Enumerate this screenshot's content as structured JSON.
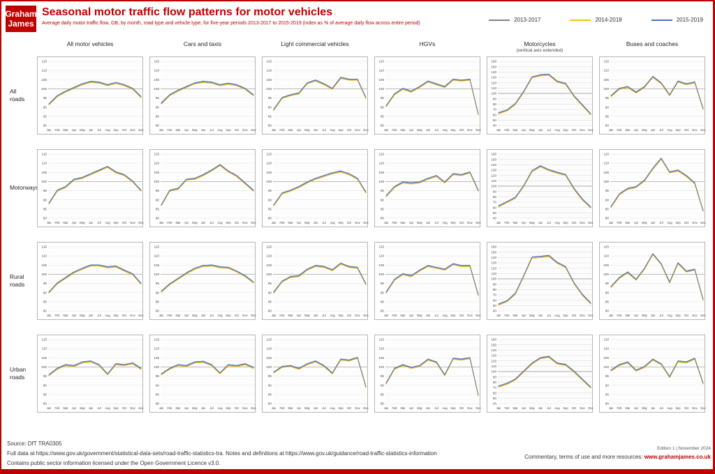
{
  "brand": {
    "logo_line1": "Graham",
    "logo_line2": "James",
    "accent_color": "#c00000"
  },
  "header": {
    "title": "Seasonal motor traffic flow patterns for motor vehicles",
    "subtitle": "Average daily motor traffic flow, GB, by month, road type and vehicle type, for five-year periods 2013-2017 to 2015-2019 (index as % of average daily flow across entire period)"
  },
  "legend": [
    {
      "label": "2013-2017",
      "color": "#808080"
    },
    {
      "label": "2014-2018",
      "color": "#ffc000"
    },
    {
      "label": "2015-2019",
      "color": "#4472c4"
    }
  ],
  "chart_data": {
    "type": "line",
    "note": "Small-multiple grid; the three five-year-period series are nearly identical in every panel, so one consensus set of monthly values is given per panel.",
    "months": [
      "Jan",
      "Feb",
      "Mar",
      "Apr",
      "May",
      "Jun",
      "Jul",
      "Aug",
      "Sep",
      "Oct",
      "Nov",
      "Dec"
    ],
    "series": [
      {
        "name": "2013-2017",
        "color": "#808080",
        "offset": 0
      },
      {
        "name": "2014-2018",
        "color": "#ffc000",
        "offset": -0.35
      },
      {
        "name": "2015-2019",
        "color": "#4472c4",
        "offset": 0.35
      }
    ],
    "columns": [
      {
        "label": "All motor vehicles",
        "sublabel": ""
      },
      {
        "label": "Cars and taxis",
        "sublabel": ""
      },
      {
        "label": "Light commercial vehicles",
        "sublabel": ""
      },
      {
        "label": "HGVs",
        "sublabel": ""
      },
      {
        "label": "Motorcycles",
        "sublabel": "(vertical axis extended)"
      },
      {
        "label": "Buses and coaches",
        "sublabel": ""
      }
    ],
    "axes": {
      "default": {
        "min": 80,
        "max": 115,
        "step": 5,
        "reference": 100
      },
      "extended": {
        "min": 40,
        "max": 160,
        "step": 10,
        "reference": 100
      }
    },
    "rows": [
      {
        "label": "All roads",
        "panels": [
          {
            "axis": "default",
            "values": [
              91.5,
              96,
              98.5,
              100.5,
              102.5,
              103.8,
              103.4,
              102,
              103.2,
              102,
              100,
              95.5
            ]
          },
          {
            "axis": "default",
            "values": [
              92,
              96.5,
              99,
              101,
              103,
              103.8,
              103.4,
              102,
              102.8,
              102,
              100,
              96.5
            ]
          },
          {
            "axis": "default",
            "values": [
              88.5,
              95,
              96.5,
              97.5,
              103,
              104.5,
              102.5,
              100,
              106,
              105,
              105,
              95
            ]
          },
          {
            "axis": "default",
            "values": [
              90.5,
              97,
              100,
              98.5,
              101,
              104,
              102.5,
              101,
              105,
              104.5,
              105,
              86
            ]
          },
          {
            "axis": "extended",
            "values": [
              63,
              68,
              80,
              103,
              130,
              134,
              135,
              122,
              118,
              95,
              78,
              61
            ]
          },
          {
            "axis": "default",
            "values": [
              96,
              100,
              101,
              98,
              101,
              106.5,
              103,
              96.5,
              104,
              102.5,
              103.5,
              89
            ]
          }
        ]
      },
      {
        "label": "Motorways",
        "panels": [
          {
            "axis": "default",
            "values": [
              88,
              95,
              97,
              101,
              102,
              104,
              106,
              108,
              105,
              103.5,
              100,
              95
            ]
          },
          {
            "axis": "default",
            "values": [
              87,
              95,
              96,
              101,
              101.5,
              103.5,
              106,
              109,
              105.5,
              103,
              99,
              95
            ]
          },
          {
            "axis": "default",
            "values": [
              87,
              93.5,
              95,
              97,
              99.5,
              101.5,
              103,
              104.5,
              105.5,
              104,
              101.5,
              94
            ]
          },
          {
            "axis": "default",
            "values": [
              92,
              97,
              99.5,
              99,
              99.5,
              101.5,
              103,
              99.5,
              104,
              103.5,
              105,
              95
            ]
          },
          {
            "axis": "extended",
            "values": [
              62,
              70,
              78,
              100,
              128,
              137,
              130,
              125,
              121,
              95,
              75,
              60
            ]
          },
          {
            "axis": "default",
            "values": [
              86,
              93,
              96,
              97,
              100.5,
              107,
              112.5,
              105,
              106,
              103,
              99,
              84
            ]
          }
        ]
      },
      {
        "label": "Rural roads",
        "panels": [
          {
            "axis": "default",
            "values": [
              90,
              95,
              98,
              101,
              103,
              104.8,
              104.8,
              103.8,
              104.2,
              102,
              100,
              94.8
            ]
          },
          {
            "axis": "default",
            "values": [
              90.5,
              94.5,
              97.5,
              100.5,
              103,
              104.5,
              104.8,
              103.8,
              103.5,
              101.5,
              99,
              95.5
            ]
          },
          {
            "axis": "default",
            "values": [
              90,
              96,
              98.5,
              99,
              102.5,
              104.5,
              104,
              102.2,
              105.8,
              104,
              103.5,
              94.5
            ]
          },
          {
            "axis": "default",
            "values": [
              90,
              97,
              100,
              99,
              102,
              104.5,
              103.5,
              102.5,
              105.5,
              104.5,
              104.5,
              88.5
            ]
          },
          {
            "axis": "extended",
            "values": [
              52,
              58,
              72,
              105,
              140,
              141,
              143,
              130,
              122,
              92,
              70,
              54
            ]
          },
          {
            "axis": "default",
            "values": [
              93,
              98,
              101,
              97,
              103,
              111,
              105.5,
              95.5,
              106,
              101.5,
              102.5,
              86
            ]
          }
        ]
      },
      {
        "label": "Urban roads",
        "panels": [
          {
            "axis": "default",
            "values": [
              95.5,
              99,
              101,
              100.5,
              102.5,
              103,
              101,
              96,
              101.5,
              101,
              102,
              99
            ]
          },
          {
            "axis": "default",
            "values": [
              96,
              99,
              101,
              100.5,
              102.5,
              102.8,
              101,
              96.5,
              101,
              100.5,
              101.5,
              99.5
            ]
          },
          {
            "axis": "default",
            "values": [
              97,
              100,
              100.5,
              99,
              101.5,
              103,
              100.5,
              96.5,
              104,
              103.5,
              105,
              89
            ]
          },
          {
            "axis": "default",
            "values": [
              91,
              99,
              101,
              99.5,
              100.5,
              104,
              102.5,
              95.5,
              104.5,
              104,
              104.8,
              84.5
            ]
          },
          {
            "axis": "extended",
            "values": [
              72,
              77,
              85,
              100,
              115,
              125,
              127.5,
              115,
              112.5,
              100,
              85,
              70
            ]
          },
          {
            "axis": "default",
            "values": [
              98,
              101,
              102.5,
              98,
              100,
              104,
              101.5,
              94.5,
              103,
              102.5,
              104.5,
              91
            ]
          }
        ]
      }
    ]
  },
  "footer": {
    "source": "Source: DfT TRA0305",
    "full_data": "Full data at https://www.gov.uk/government/statistical-data-sets/road-traffic-statistics-tra. Notes and definitions at https://www.gov.uk/guidance/road-traffic-statistics-information",
    "licence": "Contains public sector information licensed under the Open Government Licence v3.0.",
    "edition": "Edition 1 | November 2024",
    "commentary_prefix": "Commentary, terms of use and more resources: ",
    "commentary_link": "www.grahamjames.co.uk"
  }
}
